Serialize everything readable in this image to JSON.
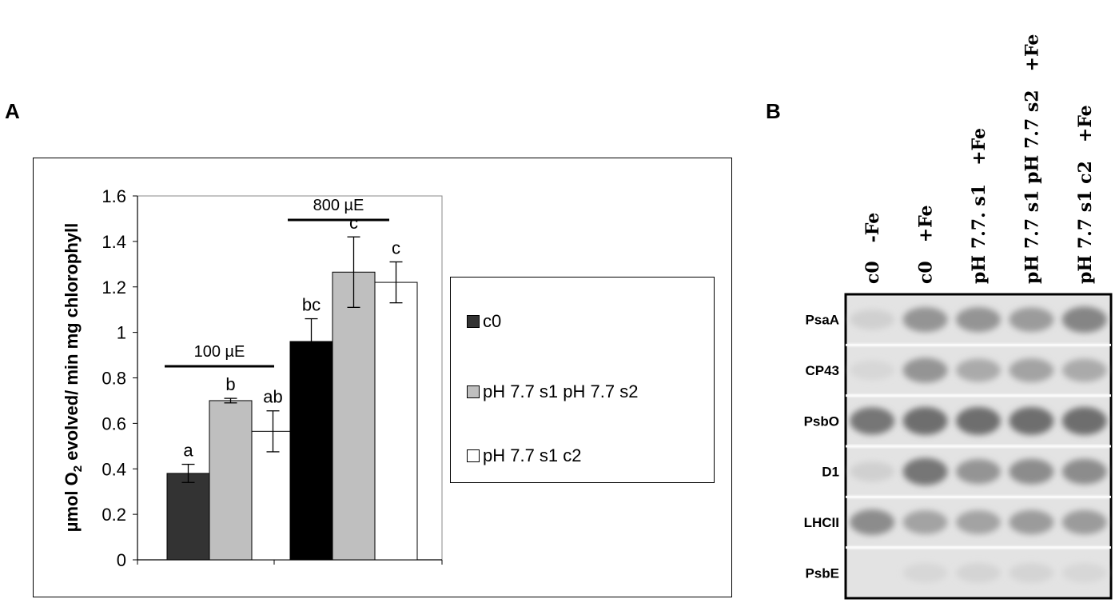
{
  "panel_a_label": "A",
  "panel_b_label": "B",
  "chart_data": {
    "type": "bar",
    "ylabel_prefix": "µmol O",
    "ylabel_sub": "2",
    "ylabel_suffix": " evolved/ min mg chlorophyll",
    "ylim": [
      0,
      1.6
    ],
    "yticks": [
      "0",
      "0.2",
      "0.4",
      "0.6",
      "0.8",
      "1",
      "1.2",
      "1.4",
      "1.6"
    ],
    "grid": false,
    "legend_position": "right",
    "groups": [
      {
        "bracket_label": "100 µE",
        "bars": [
          {
            "series": "c0",
            "value": 0.38,
            "error": 0.04,
            "letter": "a",
            "color": "#333333"
          },
          {
            "series": "pH 7.7 s1 pH 7.7 s2",
            "value": 0.7,
            "error": 0.01,
            "letter": "b",
            "color": "#bfbfbf"
          },
          {
            "series": "pH 7.7 s1 c2",
            "value": 0.565,
            "error": 0.09,
            "letter": "ab",
            "color": "#ffffff"
          }
        ]
      },
      {
        "bracket_label": "800 µE",
        "bars": [
          {
            "series": "c0",
            "value": 0.96,
            "error": 0.1,
            "letter": "bc",
            "color": "#000000"
          },
          {
            "series": "pH 7.7 s1 pH 7.7 s2",
            "value": 1.265,
            "error": 0.155,
            "letter": "c",
            "color": "#bfbfbf"
          },
          {
            "series": "pH 7.7 s1 c2",
            "value": 1.22,
            "error": 0.09,
            "letter": "c",
            "color": "#ffffff"
          }
        ]
      }
    ],
    "legend": [
      {
        "name": "c0",
        "color": "#333333"
      },
      {
        "name": "pH 7.7 s1 pH 7.7 s2",
        "color": "#bfbfbf"
      },
      {
        "name": "pH 7.7 s1 c2",
        "color": "#ffffff"
      }
    ]
  },
  "blot": {
    "lanes": [
      "c0   -Fe",
      "c0   +Fe",
      "pH 7.7. s1   +Fe",
      "pH 7.7 s1 pH 7.7 s2   +Fe",
      "pH 7.7 s1 c2   +Fe"
    ],
    "rows": [
      {
        "label": "PsaA",
        "intensity": [
          0.15,
          0.55,
          0.55,
          0.5,
          0.65
        ]
      },
      {
        "label": "CP43",
        "intensity": [
          0.1,
          0.55,
          0.4,
          0.45,
          0.4
        ]
      },
      {
        "label": "PsbO",
        "intensity": [
          0.75,
          0.8,
          0.8,
          0.8,
          0.8
        ]
      },
      {
        "label": "D1",
        "intensity": [
          0.15,
          0.75,
          0.55,
          0.6,
          0.6
        ]
      },
      {
        "label": "LHCII",
        "intensity": [
          0.6,
          0.45,
          0.45,
          0.5,
          0.5
        ]
      },
      {
        "label": "PsbE",
        "intensity": [
          0.0,
          0.1,
          0.12,
          0.12,
          0.1
        ]
      }
    ]
  }
}
